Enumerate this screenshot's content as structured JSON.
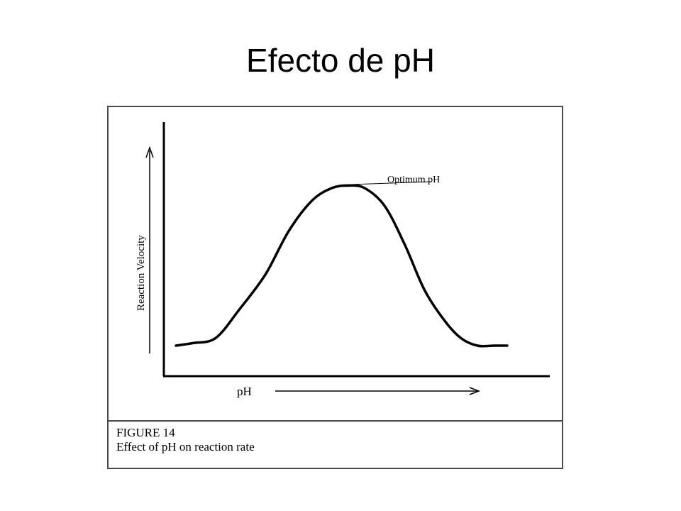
{
  "slide": {
    "title": "Efecto de pH"
  },
  "figure": {
    "caption_number": "FIGURE 14",
    "caption_text": "Effect of pH on reaction rate"
  },
  "chart_data": {
    "type": "line",
    "title": "",
    "xlabel": "pH",
    "ylabel": "Reaction Velocity",
    "annotation": "Optimum pH",
    "grid": false,
    "ticks": false,
    "xlim": [
      0,
      10
    ],
    "ylim": [
      0,
      10
    ],
    "series": [
      {
        "x": [
          0,
          0.5,
          1.2,
          1.9,
          2.7,
          3.4,
          4.1,
          4.7,
          5.2,
          5.7,
          6.3,
          6.9,
          7.5,
          8.1,
          8.6,
          9.1,
          9.6,
          10
        ],
        "y": [
          1.2,
          1.3,
          1.5,
          2.6,
          4.0,
          5.7,
          6.9,
          7.4,
          7.5,
          7.4,
          6.7,
          5.2,
          3.4,
          2.2,
          1.5,
          1.2,
          1.2,
          1.2
        ]
      }
    ],
    "optimum": {
      "x": 5.0,
      "y": 7.5
    }
  }
}
